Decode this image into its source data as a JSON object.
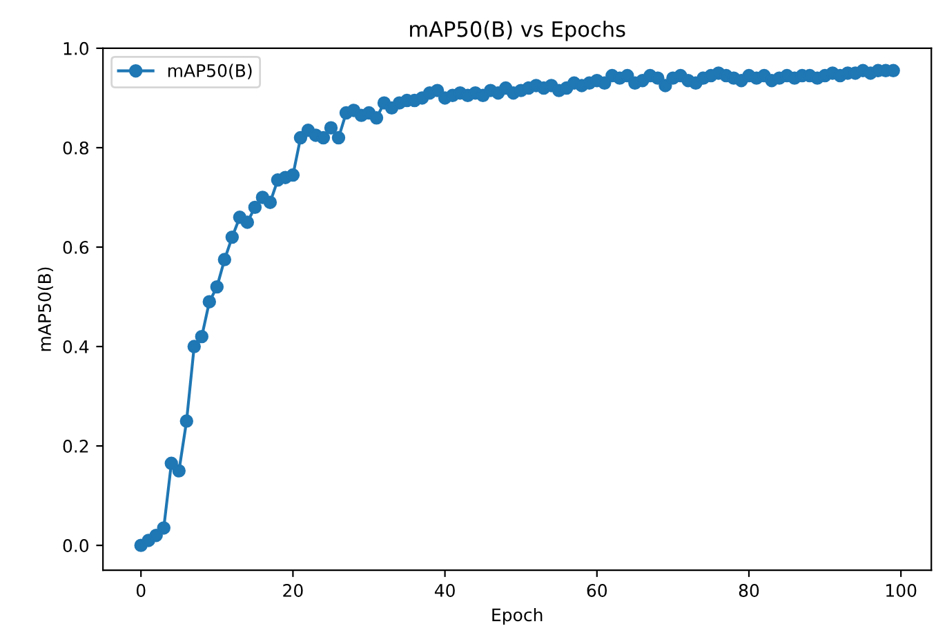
{
  "chart_data": {
    "type": "line",
    "title": "mAP50(B) vs Epochs",
    "xlabel": "Epoch",
    "ylabel": "mAP50(B)",
    "x": [
      0,
      1,
      2,
      3,
      4,
      5,
      6,
      7,
      8,
      9,
      10,
      11,
      12,
      13,
      14,
      15,
      16,
      17,
      18,
      19,
      20,
      21,
      22,
      23,
      24,
      25,
      26,
      27,
      28,
      29,
      30,
      31,
      32,
      33,
      34,
      35,
      36,
      37,
      38,
      39,
      40,
      41,
      42,
      43,
      44,
      45,
      46,
      47,
      48,
      49,
      50,
      51,
      52,
      53,
      54,
      55,
      56,
      57,
      58,
      59,
      60,
      61,
      62,
      63,
      64,
      65,
      66,
      67,
      68,
      69,
      70,
      71,
      72,
      73,
      74,
      75,
      76,
      77,
      78,
      79,
      80,
      81,
      82,
      83,
      84,
      85,
      86,
      87,
      88,
      89,
      90,
      91,
      92,
      93,
      94,
      95,
      96,
      97,
      98,
      99
    ],
    "series": [
      {
        "name": "mAP50(B)",
        "color": "#1f77b4",
        "values": [
          0.0,
          0.01,
          0.02,
          0.035,
          0.165,
          0.15,
          0.25,
          0.4,
          0.42,
          0.49,
          0.52,
          0.575,
          0.62,
          0.66,
          0.65,
          0.68,
          0.7,
          0.69,
          0.735,
          0.74,
          0.745,
          0.82,
          0.835,
          0.825,
          0.82,
          0.84,
          0.82,
          0.87,
          0.875,
          0.865,
          0.87,
          0.86,
          0.89,
          0.88,
          0.89,
          0.895,
          0.895,
          0.9,
          0.91,
          0.915,
          0.9,
          0.905,
          0.91,
          0.905,
          0.91,
          0.905,
          0.915,
          0.91,
          0.92,
          0.91,
          0.915,
          0.92,
          0.925,
          0.92,
          0.925,
          0.915,
          0.92,
          0.93,
          0.925,
          0.93,
          0.935,
          0.93,
          0.945,
          0.94,
          0.945,
          0.93,
          0.935,
          0.945,
          0.94,
          0.925,
          0.94,
          0.945,
          0.935,
          0.93,
          0.94,
          0.945,
          0.95,
          0.945,
          0.94,
          0.935,
          0.945,
          0.94,
          0.945,
          0.935,
          0.94,
          0.945,
          0.94,
          0.945,
          0.945,
          0.94,
          0.945,
          0.95,
          0.945,
          0.95,
          0.95,
          0.955,
          0.95,
          0.955,
          0.955,
          0.955
        ]
      }
    ],
    "xlim": [
      -5,
      104
    ],
    "xticks": [
      0,
      20,
      40,
      60,
      80,
      100
    ],
    "ylim": [
      -0.05,
      1.0
    ],
    "yticks": [
      {
        "value": 0.0,
        "label": "0.0"
      },
      {
        "value": 0.2,
        "label": "0.2"
      },
      {
        "value": 0.4,
        "label": "0.4"
      },
      {
        "value": 0.6,
        "label": "0.6"
      },
      {
        "value": 0.8,
        "label": "0.8"
      },
      {
        "value": 1.0,
        "label": "1.0"
      }
    ],
    "marker": "circle",
    "line_style": "solid",
    "legend": "top left",
    "grid": false
  }
}
